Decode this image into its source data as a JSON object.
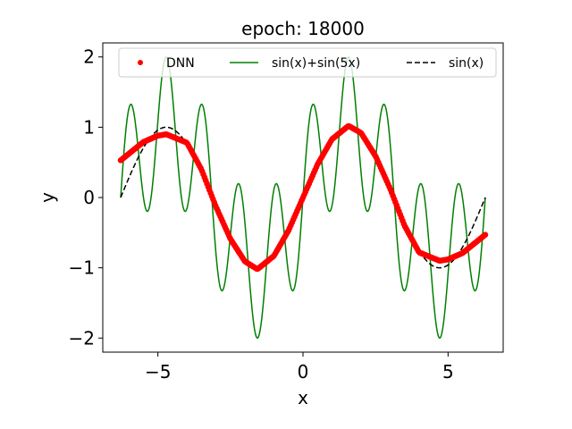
{
  "chart_data": {
    "type": "line",
    "title": "epoch: 18000",
    "xlabel": "x",
    "ylabel": "y",
    "xlim": [
      -6.9,
      6.9
    ],
    "ylim": [
      -2.2,
      2.2
    ],
    "xticks": [
      -5,
      0,
      5
    ],
    "xtick_labels": [
      "−5",
      "0",
      "5"
    ],
    "yticks": [
      -2,
      -1,
      0,
      1,
      2
    ],
    "ytick_labels": [
      "−2",
      "−1",
      "0",
      "1",
      "2"
    ],
    "x_range": [
      -6.283,
      6.283
    ],
    "grid": false,
    "legend_position": "top",
    "series": [
      {
        "name": "DNN",
        "style": "dots",
        "color": "#ff0000",
        "x": [
          -6.28,
          -5.5,
          -5.0,
          -4.71,
          -4.0,
          -3.5,
          -3.0,
          -2.5,
          -2.0,
          -1.57,
          -1.0,
          -0.5,
          0.0,
          0.5,
          1.0,
          1.57,
          2.0,
          2.5,
          3.0,
          3.5,
          4.0,
          4.71,
          5.0,
          5.5,
          6.28
        ],
        "y": [
          0.53,
          0.79,
          0.88,
          0.9,
          0.78,
          0.4,
          -0.13,
          -0.59,
          -0.91,
          -1.02,
          -0.83,
          -0.47,
          0.0,
          0.47,
          0.83,
          1.02,
          0.92,
          0.59,
          0.13,
          -0.4,
          -0.78,
          -0.9,
          -0.88,
          -0.79,
          -0.53
        ]
      },
      {
        "name": "sin(x)+sin(5x)",
        "style": "solid",
        "color": "#008000",
        "function": "sin(x)+sin(5x)"
      },
      {
        "name": "sin(x)",
        "style": "dashed",
        "color": "#000000",
        "function": "sin(x)"
      }
    ]
  }
}
